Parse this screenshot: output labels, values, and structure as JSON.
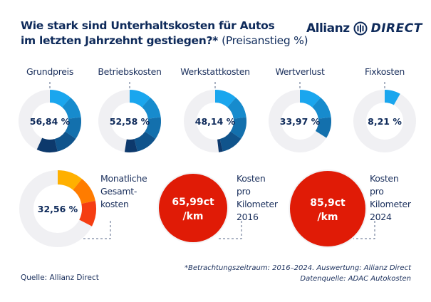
{
  "title": {
    "line1": "Wie stark sind Unterhaltskosten für Autos",
    "line2": "im letzten Jahrzehnt gestiegen?*",
    "unit": "(Preisanstieg %)"
  },
  "logo": {
    "brand": "Allianz",
    "product": "DIRECT"
  },
  "chart_data": {
    "type": "donut",
    "title": "Wie stark sind Unterhaltskosten für Autos im letzten Jahrzehnt gestiegen?* (Preisanstieg %)",
    "categories": [
      "Grundpreis",
      "Betriebskosten",
      "Werkstattkosten",
      "Wertverlust",
      "Fixkosten",
      "Monatliche Gesamtkosten"
    ],
    "values": [
      56.84,
      52.58,
      48.14,
      33.97,
      8.21,
      32.56
    ],
    "value_labels": [
      "56,84 %",
      "52,58 %",
      "48,14 %",
      "33,97 %",
      "8,21 %",
      "32,56 %"
    ],
    "colors": {
      "blue_start": "#1aa6ee",
      "blue_end": "#0a2452",
      "track": "#f0f0f3",
      "orange": [
        "#ffb000",
        "#ff7c00",
        "#f53d12"
      ],
      "red": "#e01b06"
    },
    "cost_per_km": [
      {
        "value_label": "65,99ct",
        "unit": "/km",
        "label": [
          "Kosten",
          "pro",
          "Kilometer",
          "2016"
        ]
      },
      {
        "value_label": "85,9ct",
        "unit": "/km",
        "label": [
          "Kosten",
          "pro",
          "Kilometer",
          "2024"
        ]
      }
    ],
    "total_label": [
      "Monatliche",
      "Gesamt-",
      "kosten"
    ]
  },
  "footer": {
    "source": "Quelle: Allianz Direct",
    "note1": "*Betrachtungszeitraum: 2016–2024. Auswertung: Allianz Direct",
    "note2": "Datenquelle: ADAC Autokosten"
  }
}
